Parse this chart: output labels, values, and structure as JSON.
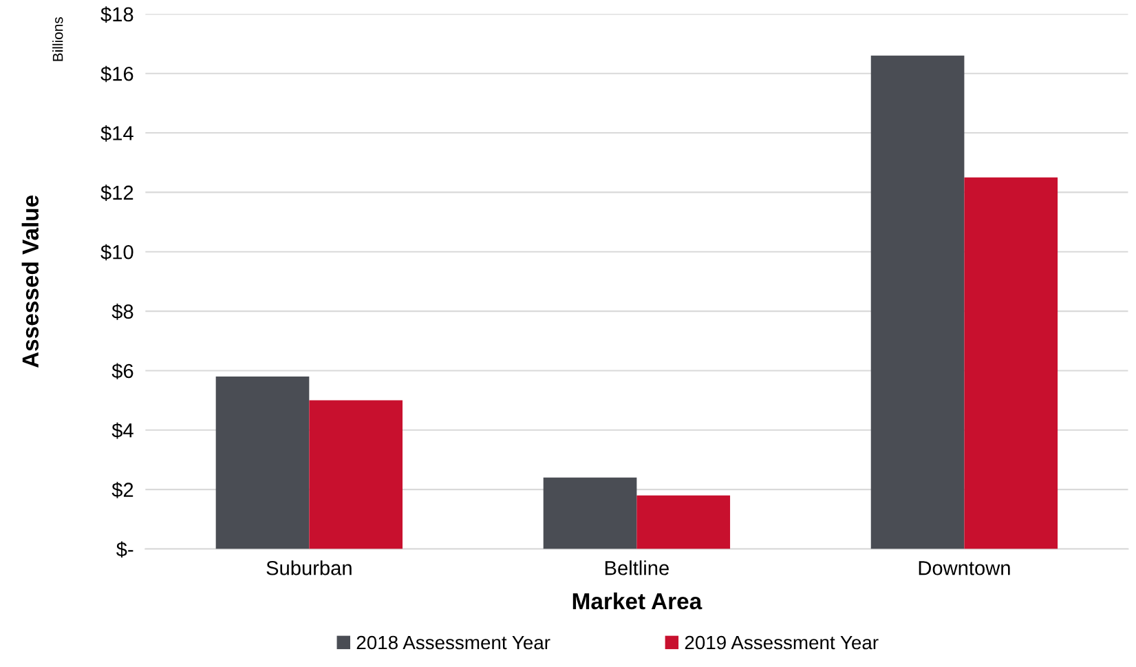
{
  "chart_data": {
    "type": "bar",
    "xlabel": "Market Area",
    "ylabel": "Assessed Value",
    "annotations": [
      "Billions"
    ],
    "categories": [
      "Suburban",
      "Beltline",
      "Downtown"
    ],
    "series": [
      {
        "name": "2018 Assessment Year",
        "color": "#4a4d54",
        "values": [
          5.8,
          2.4,
          16.6
        ]
      },
      {
        "name": "2019 Assessment Year",
        "color": "#c8102e",
        "values": [
          5.0,
          1.8,
          12.5
        ]
      }
    ],
    "ylim": [
      0,
      18
    ],
    "yticks": [
      {
        "value": 0,
        "label": "$-"
      },
      {
        "value": 2,
        "label": "$2"
      },
      {
        "value": 4,
        "label": "$4"
      },
      {
        "value": 6,
        "label": "$6"
      },
      {
        "value": 8,
        "label": "$8"
      },
      {
        "value": 10,
        "label": "$10"
      },
      {
        "value": 12,
        "label": "$12"
      },
      {
        "value": 14,
        "label": "$14"
      },
      {
        "value": 16,
        "label": "$16"
      },
      {
        "value": 18,
        "label": "$18"
      }
    ],
    "grid": "y",
    "legend": "bottom"
  }
}
